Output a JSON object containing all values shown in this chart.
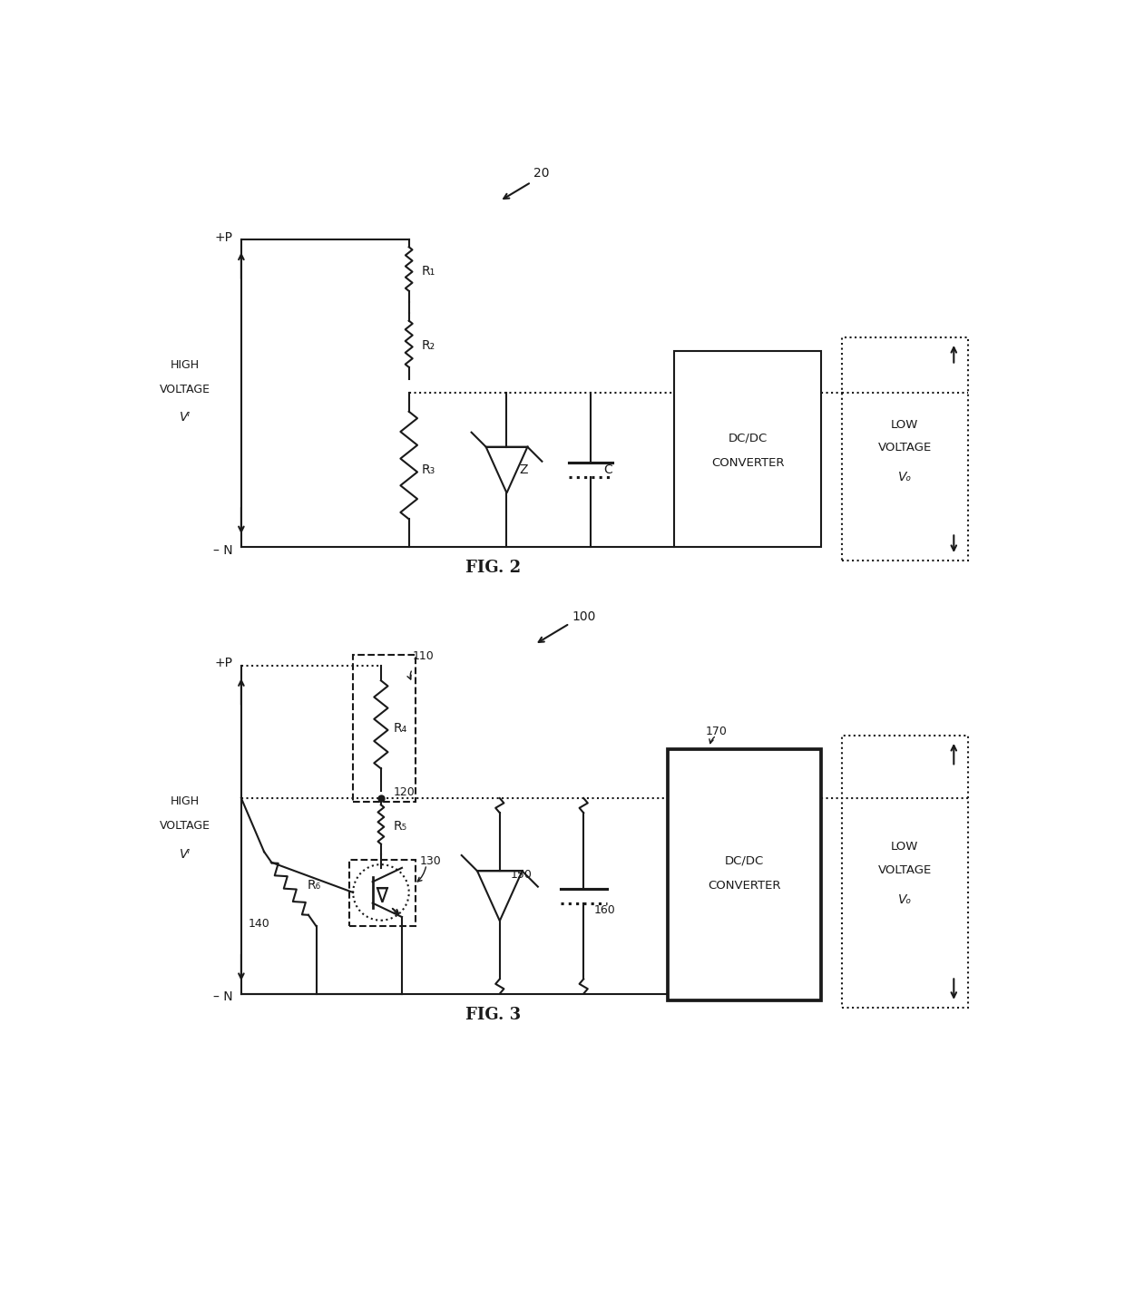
{
  "fig_width": 12.4,
  "fig_height": 14.3,
  "bg_color": "#ffffff",
  "line_color": "#1a1a1a",
  "lw": 1.5,
  "fig2_label": "20",
  "fig3_label": "100",
  "fig2_caption": "FIG. 2",
  "fig3_caption": "FIG. 3"
}
